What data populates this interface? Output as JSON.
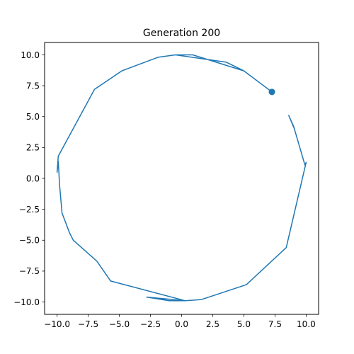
{
  "chart_data": {
    "type": "line",
    "title": "Generation 200",
    "xlabel": "",
    "ylabel": "",
    "xlim": [
      -11.0,
      11.0
    ],
    "ylim": [
      -11.0,
      11.0
    ],
    "xticks": [
      -10.0,
      -7.5,
      -5.0,
      -2.5,
      0.0,
      2.5,
      5.0,
      7.5,
      10.0
    ],
    "yticks": [
      -10.0,
      -7.5,
      -5.0,
      -2.5,
      0.0,
      2.5,
      5.0,
      7.5,
      10.0
    ],
    "xtick_labels": [
      "−10.0",
      "−7.5",
      "−5.0",
      "−2.5",
      "0.0",
      "2.5",
      "5.0",
      "7.5",
      "10.0"
    ],
    "ytick_labels": [
      "−10.0",
      "−7.5",
      "−5.0",
      "−2.5",
      "0.0",
      "2.5",
      "5.0",
      "7.5",
      "10.0"
    ],
    "grid": false,
    "legend": "none",
    "line_color": "#1f77b4",
    "series": [
      {
        "x": [
          7.25,
          5.0,
          3.6,
          -0.5,
          0.9,
          5.0,
          7.25,
          5.0,
          3.6,
          -0.5,
          -1.9,
          -4.8,
          -7.0,
          -9.9,
          -10.0,
          -9.9,
          -9.8,
          -9.6,
          -9.0,
          -8.7,
          -6.8,
          -5.7,
          0.3,
          -2.8,
          -1.0,
          0.3,
          1.6,
          5.2,
          8.4,
          10.0,
          9.9,
          9.0,
          8.6,
          9.1
        ],
        "y": [
          7.0,
          8.7,
          9.4,
          10.0,
          10.0,
          8.7,
          7.0,
          8.7,
          9.4,
          10.0,
          9.8,
          8.7,
          7.2,
          1.8,
          0.5,
          1.4,
          -0.5,
          -2.8,
          -4.4,
          -5.0,
          -6.7,
          -8.3,
          -9.9,
          -9.6,
          -9.9,
          -9.9,
          -9.8,
          -8.6,
          -5.6,
          1.3,
          1.1,
          4.2,
          5.1,
          3.9
        ]
      }
    ],
    "marker": {
      "x": 7.25,
      "y": 7.0
    }
  }
}
